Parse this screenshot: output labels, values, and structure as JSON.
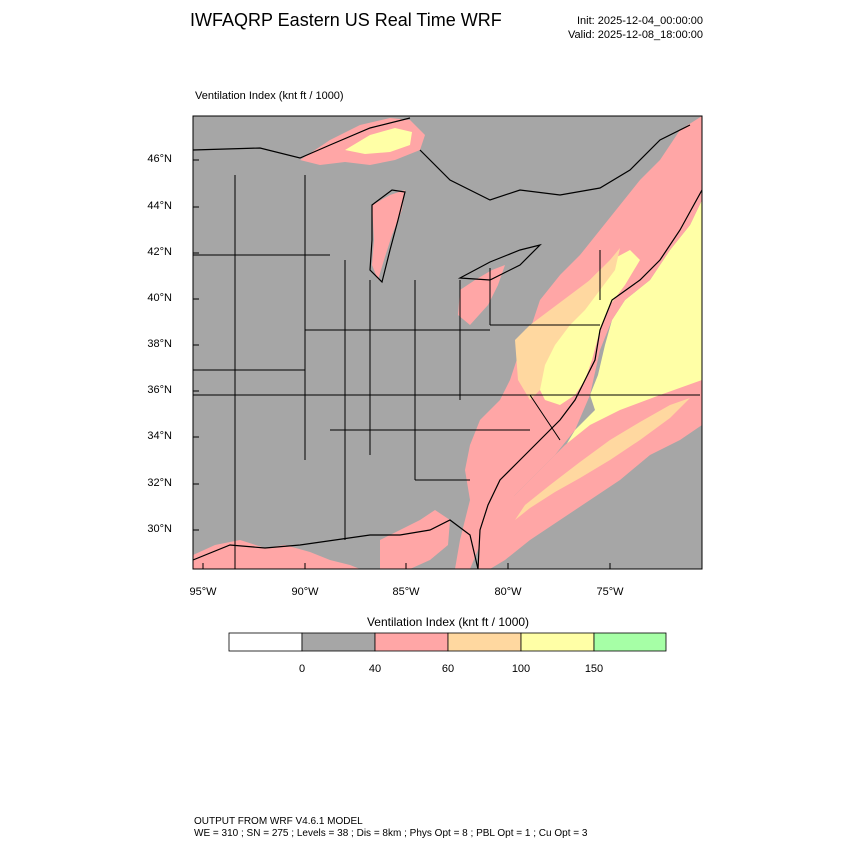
{
  "header": {
    "title": "IWFAQRP Eastern US Real Time WRF",
    "init": "Init: 2025-12-04_00:00:00",
    "valid": "Valid: 2025-12-08_18:00:00"
  },
  "map": {
    "field_label": "Ventilation Index   (knt ft / 1000)",
    "lat_labels": [
      "46°N",
      "44°N",
      "42°N",
      "40°N",
      "38°N",
      "36°N",
      "34°N",
      "32°N",
      "30°N"
    ],
    "lon_labels": [
      "95°W",
      "90°W",
      "85°W",
      "80°W",
      "75°W"
    ]
  },
  "colorbar": {
    "title": "Ventilation Index  (knt ft / 1000)",
    "colors": [
      "#ffffff",
      "#a6a6a6",
      "#ffa6a6",
      "#ffd8a0",
      "#ffffa6",
      "#a6ffa6"
    ],
    "labels": [
      "0",
      "40",
      "60",
      "100",
      "150"
    ]
  },
  "footer": {
    "line1": "OUTPUT FROM WRF V4.6.1 MODEL",
    "line2": "WE = 310 ; SN = 275 ; Levels = 38 ; Dis = 8km ; Phys Opt = 8 ; PBL Opt = 1 ; Cu Opt = 3"
  }
}
